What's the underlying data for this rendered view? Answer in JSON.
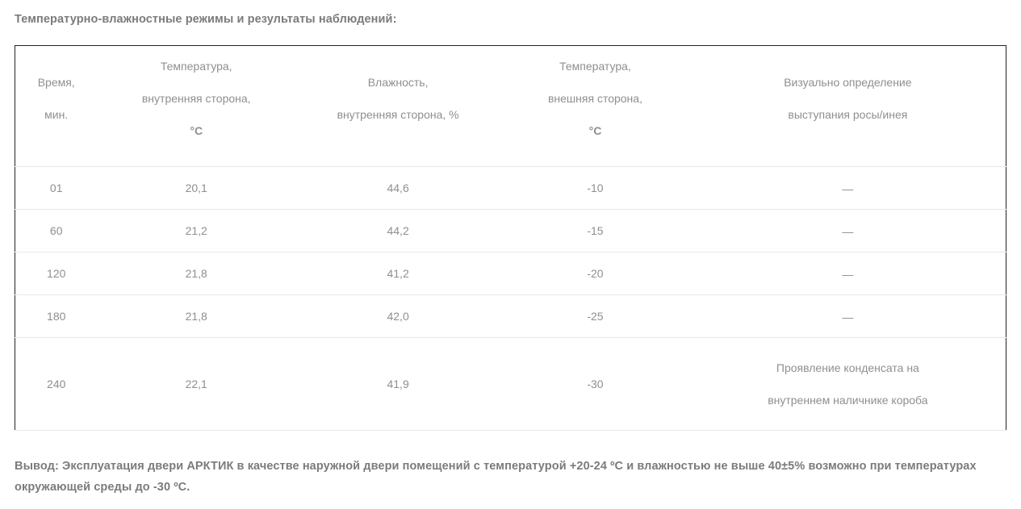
{
  "page": {
    "title": "Температурно-влажностные режимы и результаты наблюдений:",
    "conclusion": "Вывод: Эксплуатация двери АРКТИК в качестве наружной двери помещений с температурой +20-24 ºС и влажностью не выше 40±5% возможно при температурах окружающей среды до -30 ºС."
  },
  "colors": {
    "heading_text": "#7b7b7b",
    "table_text": "#8f8f8f",
    "outer_border": "#222222",
    "row_divider": "#e8e8e8"
  },
  "table": {
    "header": [
      {
        "lines": [
          "Время,",
          "мин."
        ]
      },
      {
        "lines": [
          "Температура,",
          "внутренняя сторона,",
          "°С"
        ]
      },
      {
        "lines": [
          "Влажность,",
          "внутренняя сторона, %"
        ]
      },
      {
        "lines": [
          "Температура,",
          "внешняя сторона,",
          "°С"
        ]
      },
      {
        "lines": [
          "Визуально определение",
          "выступания росы/инея"
        ]
      }
    ],
    "rows": [
      {
        "cells": [
          "01",
          "20,1",
          "44,6",
          "-10",
          "—"
        ]
      },
      {
        "cells": [
          "60",
          "21,2",
          "44,2",
          "-15",
          "—"
        ]
      },
      {
        "cells": [
          "120",
          "21,8",
          "41,2",
          "-20",
          "—"
        ]
      },
      {
        "cells": [
          "180",
          "21,8",
          "42,0",
          "-25",
          "—"
        ]
      },
      {
        "cells": [
          "240",
          "22,1",
          "41,9",
          "-30",
          "Проявление конденсата на внутреннем наличнике короба"
        ]
      }
    ]
  }
}
